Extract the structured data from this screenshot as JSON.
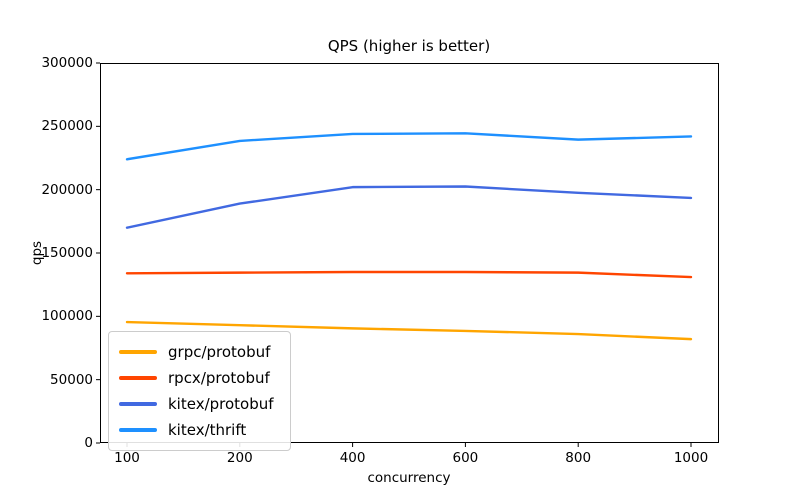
{
  "figure": {
    "background": "#ffffff",
    "text_color": "#000000",
    "spine_color": "#000000"
  },
  "chart_data": {
    "type": "line",
    "title": "QPS (higher is better)",
    "xlabel": "concurrency",
    "ylabel": "qps",
    "categories": [
      "100",
      "200",
      "400",
      "600",
      "800",
      "1000"
    ],
    "series": [
      {
        "name": "grpc/protobuf",
        "color": "#FFA500",
        "values": [
          95500,
          93000,
          90500,
          88500,
          86000,
          82000
        ]
      },
      {
        "name": "rpcx/protobuf",
        "color": "#FF4500",
        "values": [
          134000,
          134500,
          135000,
          135000,
          134500,
          131000
        ]
      },
      {
        "name": "kitex/protobuf",
        "color": "#4169E1",
        "values": [
          170000,
          189000,
          202000,
          202500,
          197500,
          193500
        ]
      },
      {
        "name": "kitex/thrift",
        "color": "#1E90FF",
        "values": [
          224000,
          238500,
          244000,
          244500,
          239500,
          242000
        ]
      }
    ],
    "ylim": [
      0,
      300000
    ],
    "yticks": [
      0,
      50000,
      100000,
      150000,
      200000,
      250000,
      300000
    ],
    "grid": false,
    "legend_position": "lower left",
    "line_width": 2.4
  }
}
